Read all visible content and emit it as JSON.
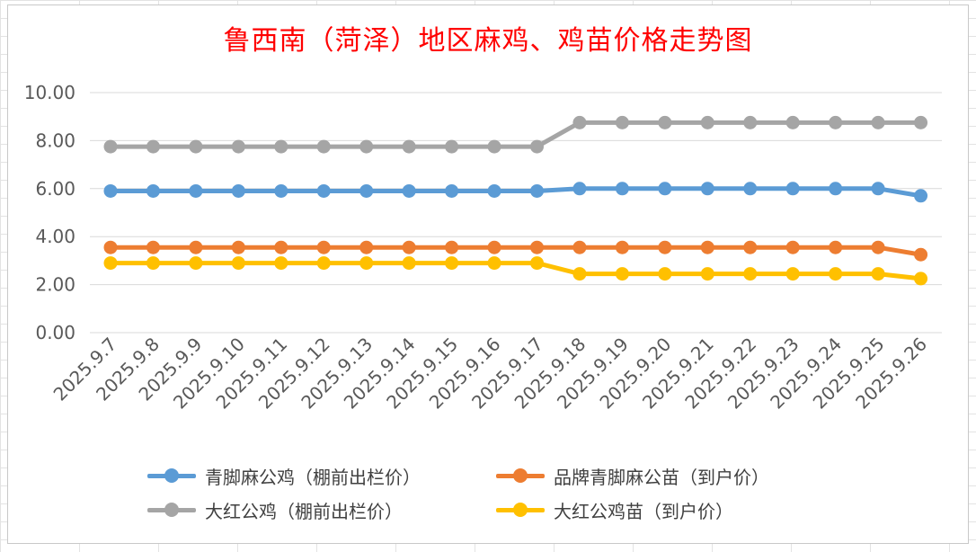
{
  "chart_data": {
    "type": "line",
    "title": "鲁西南（菏泽）地区麻鸡、鸡苗价格走势图",
    "xlabel": "",
    "ylabel": "",
    "ylim": [
      0,
      10
    ],
    "yticks": [
      "0.00",
      "2.00",
      "4.00",
      "6.00",
      "8.00",
      "10.00"
    ],
    "grid": true,
    "legend_position": "bottom",
    "categories": [
      "2025.9.7",
      "2025.9.8",
      "2025.9.9",
      "2025.9.10",
      "2025.9.11",
      "2025.9.12",
      "2025.9.13",
      "2025.9.14",
      "2025.9.15",
      "2025.9.16",
      "2025.9.17",
      "2025.9.18",
      "2025.9.19",
      "2025.9.20",
      "2025.9.21",
      "2025.9.22",
      "2025.9.23",
      "2025.9.24",
      "2025.9.25",
      "2025.9.26"
    ],
    "series": [
      {
        "name": "青脚麻公鸡（棚前出栏价）",
        "color": "#5b9bd5",
        "values": [
          5.9,
          5.9,
          5.9,
          5.9,
          5.9,
          5.9,
          5.9,
          5.9,
          5.9,
          5.9,
          5.9,
          6.0,
          6.0,
          6.0,
          6.0,
          6.0,
          6.0,
          6.0,
          6.0,
          5.7
        ]
      },
      {
        "name": "品牌青脚麻公苗（到户价）",
        "color": "#ed7d31",
        "values": [
          3.55,
          3.55,
          3.55,
          3.55,
          3.55,
          3.55,
          3.55,
          3.55,
          3.55,
          3.55,
          3.55,
          3.55,
          3.55,
          3.55,
          3.55,
          3.55,
          3.55,
          3.55,
          3.55,
          3.25
        ]
      },
      {
        "name": "大红公鸡（棚前出栏价）",
        "color": "#a5a5a5",
        "values": [
          7.75,
          7.75,
          7.75,
          7.75,
          7.75,
          7.75,
          7.75,
          7.75,
          7.75,
          7.75,
          7.75,
          8.75,
          8.75,
          8.75,
          8.75,
          8.75,
          8.75,
          8.75,
          8.75,
          8.75
        ]
      },
      {
        "name": "大红公鸡苗（到户价）",
        "color": "#ffc000",
        "values": [
          2.9,
          2.9,
          2.9,
          2.9,
          2.9,
          2.9,
          2.9,
          2.9,
          2.9,
          2.9,
          2.9,
          2.45,
          2.45,
          2.45,
          2.45,
          2.45,
          2.45,
          2.45,
          2.45,
          2.25
        ]
      }
    ]
  }
}
